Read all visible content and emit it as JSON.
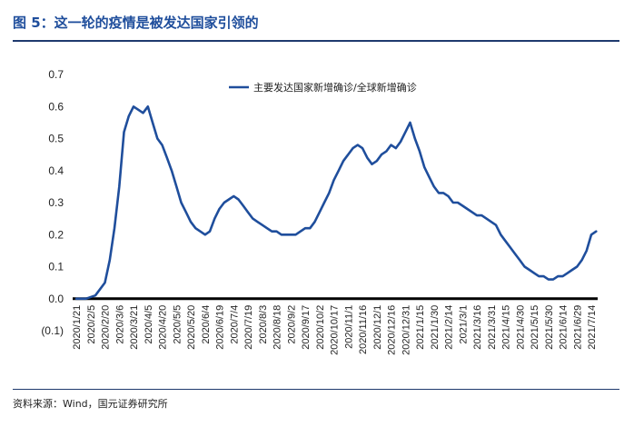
{
  "title": "图 5：这一轮的疫情是被发达国家引领的",
  "source": "资料来源：Wind，国元证券研究所",
  "chart_data": {
    "type": "line",
    "title": "图 5：这一轮的疫情是被发达国家引领的",
    "xlabel": "",
    "ylabel": "",
    "ylim": [
      -0.1,
      0.7
    ],
    "yticks": [
      -0.1,
      0.0,
      0.1,
      0.2,
      0.3,
      0.4,
      0.5,
      0.6,
      0.7
    ],
    "ytick_labels": [
      "(0.1)",
      "0.0",
      "0.1",
      "0.2",
      "0.3",
      "0.4",
      "0.5",
      "0.6",
      "0.7"
    ],
    "negative_tick_color": "#ff0000",
    "series_color": "#1f4e9c",
    "grid": false,
    "legend": "top-right",
    "x_tick_labels": [
      "2020/1/21",
      "2020/2/5",
      "2020/2/20",
      "2020/3/6",
      "2020/3/21",
      "2020/4/5",
      "2020/4/20",
      "2020/5/5",
      "2020/5/20",
      "2020/6/4",
      "2020/6/19",
      "2020/7/4",
      "2020/7/19",
      "2020/8/3",
      "2020/8/18",
      "2020/9/2",
      "2020/9/17",
      "2020/10/2",
      "2020/10/17",
      "2020/11/1",
      "2020/11/16",
      "2020/12/1",
      "2020/12/16",
      "2020/12/31",
      "2021/1/15",
      "2021/1/30",
      "2021/2/14",
      "2021/3/1",
      "2021/3/16",
      "2021/3/31",
      "2021/4/15",
      "2021/4/30",
      "2021/5/15",
      "2021/5/30",
      "2021/6/14",
      "2021/6/29",
      "2021/7/14"
    ],
    "series": [
      {
        "name": "主要发达国家新增确诊/全球新增确诊",
        "x": [
          "2020/1/21",
          "2020/1/31",
          "2020/2/10",
          "2020/2/20",
          "2020/2/25",
          "2020/3/1",
          "2020/3/6",
          "2020/3/11",
          "2020/3/16",
          "2020/3/21",
          "2020/3/26",
          "2020/3/31",
          "2020/4/5",
          "2020/4/10",
          "2020/4/15",
          "2020/4/20",
          "2020/4/25",
          "2020/4/30",
          "2020/5/5",
          "2020/5/10",
          "2020/5/15",
          "2020/5/20",
          "2020/5/25",
          "2020/5/30",
          "2020/6/4",
          "2020/6/9",
          "2020/6/14",
          "2020/6/19",
          "2020/6/24",
          "2020/6/29",
          "2020/7/4",
          "2020/7/9",
          "2020/7/14",
          "2020/7/19",
          "2020/7/24",
          "2020/7/29",
          "2020/8/3",
          "2020/8/8",
          "2020/8/13",
          "2020/8/18",
          "2020/8/23",
          "2020/8/28",
          "2020/9/2",
          "2020/9/7",
          "2020/9/12",
          "2020/9/17",
          "2020/9/22",
          "2020/9/27",
          "2020/10/2",
          "2020/10/7",
          "2020/10/12",
          "2020/10/17",
          "2020/10/22",
          "2020/10/27",
          "2020/11/1",
          "2020/11/6",
          "2020/11/11",
          "2020/11/16",
          "2020/11/21",
          "2020/11/26",
          "2020/12/1",
          "2020/12/6",
          "2020/12/11",
          "2020/12/16",
          "2020/12/21",
          "2020/12/26",
          "2020/12/31",
          "2021/1/5",
          "2021/1/10",
          "2021/1/15",
          "2021/1/20",
          "2021/1/25",
          "2021/1/30",
          "2021/2/4",
          "2021/2/9",
          "2021/2/14",
          "2021/2/19",
          "2021/2/24",
          "2021/3/1",
          "2021/3/6",
          "2021/3/11",
          "2021/3/16",
          "2021/3/21",
          "2021/3/26",
          "2021/3/31",
          "2021/4/5",
          "2021/4/10",
          "2021/4/15",
          "2021/4/20",
          "2021/4/25",
          "2021/4/30",
          "2021/5/5",
          "2021/5/10",
          "2021/5/15",
          "2021/5/20",
          "2021/5/25",
          "2021/5/30",
          "2021/6/4",
          "2021/6/9",
          "2021/6/14",
          "2021/6/19",
          "2021/6/24",
          "2021/6/29",
          "2021/7/4",
          "2021/7/9",
          "2021/7/14",
          "2021/7/19"
        ],
        "values": [
          0.0,
          0.0,
          0.01,
          0.05,
          0.12,
          0.22,
          0.35,
          0.52,
          0.57,
          0.6,
          0.59,
          0.58,
          0.6,
          0.55,
          0.5,
          0.48,
          0.44,
          0.4,
          0.35,
          0.3,
          0.27,
          0.24,
          0.22,
          0.21,
          0.2,
          0.21,
          0.25,
          0.28,
          0.3,
          0.31,
          0.32,
          0.31,
          0.29,
          0.27,
          0.25,
          0.24,
          0.23,
          0.22,
          0.21,
          0.21,
          0.2,
          0.2,
          0.2,
          0.2,
          0.21,
          0.22,
          0.22,
          0.24,
          0.27,
          0.3,
          0.33,
          0.37,
          0.4,
          0.43,
          0.45,
          0.47,
          0.48,
          0.47,
          0.44,
          0.42,
          0.43,
          0.45,
          0.46,
          0.48,
          0.47,
          0.49,
          0.52,
          0.55,
          0.5,
          0.46,
          0.41,
          0.38,
          0.35,
          0.33,
          0.33,
          0.32,
          0.3,
          0.3,
          0.29,
          0.28,
          0.27,
          0.26,
          0.26,
          0.25,
          0.24,
          0.23,
          0.2,
          0.18,
          0.16,
          0.14,
          0.12,
          0.1,
          0.09,
          0.08,
          0.07,
          0.07,
          0.06,
          0.06,
          0.07,
          0.07,
          0.08,
          0.09,
          0.1,
          0.12,
          0.15,
          0.2,
          0.21
        ]
      }
    ]
  }
}
